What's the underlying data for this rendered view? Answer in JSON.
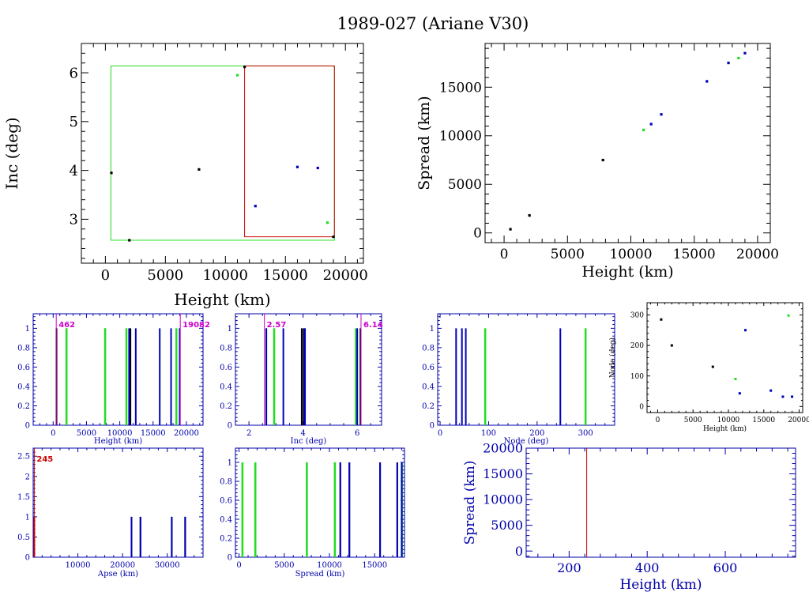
{
  "page": {
    "title": "1989-027 (Ariane V30)"
  },
  "colors": {
    "black": "#000000",
    "green": "#22dd22",
    "blue": "#0000bb",
    "red": "#cc0000",
    "magenta": "#cc00cc",
    "axisblue": "#0000aa"
  },
  "chart_data": [
    {
      "id": "inc-height",
      "type": "scatter",
      "xlabel": "Height (km)",
      "ylabel": "Inc (deg)",
      "xlim": [
        -2000,
        21500
      ],
      "ylim": [
        2.1,
        6.6
      ],
      "xticks": [
        0,
        5000,
        10000,
        15000,
        20000
      ],
      "yticks": [
        3,
        4,
        5,
        6
      ],
      "boxes": [
        {
          "color": "green",
          "x": [
            462,
            19082
          ],
          "y": [
            2.57,
            6.14
          ]
        },
        {
          "color": "red",
          "x": [
            11600,
            19082
          ],
          "y": [
            2.64,
            6.14
          ]
        }
      ],
      "series": [
        {
          "color": "black",
          "points": [
            [
              500,
              3.95
            ],
            [
              2000,
              2.57
            ],
            [
              7800,
              4.02
            ],
            [
              11600,
              6.12
            ],
            [
              19000,
              2.64
            ]
          ]
        },
        {
          "color": "green",
          "points": [
            [
              11000,
              5.95
            ],
            [
              18500,
              2.93
            ]
          ]
        },
        {
          "color": "blue",
          "points": [
            [
              12500,
              3.27
            ],
            [
              16000,
              4.07
            ],
            [
              17700,
              4.05
            ]
          ]
        }
      ]
    },
    {
      "id": "spread-height",
      "type": "scatter",
      "xlabel": "Height (km)",
      "ylabel": "Spread (km)",
      "xlim": [
        -1500,
        21000
      ],
      "ylim": [
        -1000,
        19500
      ],
      "xticks": [
        0,
        5000,
        10000,
        15000,
        20000
      ],
      "yticks": [
        0,
        5000,
        10000,
        15000
      ],
      "series": [
        {
          "color": "black",
          "points": [
            [
              500,
              380
            ],
            [
              2000,
              1800
            ],
            [
              7800,
              7500
            ]
          ]
        },
        {
          "color": "green",
          "points": [
            [
              11000,
              10600
            ],
            [
              18500,
              18000
            ]
          ]
        },
        {
          "color": "blue",
          "points": [
            [
              11600,
              11200
            ],
            [
              12400,
              12200
            ],
            [
              16000,
              15600
            ],
            [
              17700,
              17500
            ],
            [
              19000,
              18500
            ]
          ]
        }
      ]
    },
    {
      "id": "hist-height",
      "type": "bar",
      "xlabel": "Height (km)",
      "xlim": [
        -3000,
        22500
      ],
      "ylim": [
        0,
        1.15
      ],
      "xticks": [
        0,
        5000,
        10000,
        15000,
        20000
      ],
      "yticks": [
        0,
        0.2,
        0.4,
        0.6,
        0.8,
        1
      ],
      "series": [
        {
          "color": "black",
          "x": [
            500,
            2000,
            7800,
            11600,
            19000
          ]
        },
        {
          "color": "green",
          "x": [
            2000,
            7800,
            11000,
            18500
          ]
        },
        {
          "color": "blue",
          "x": [
            11400,
            12400,
            16000,
            17700,
            19000
          ]
        }
      ],
      "markers": [
        {
          "x": 462,
          "label": "462",
          "color": "magenta",
          "align": "right"
        },
        {
          "x": 19082,
          "label": "19082",
          "color": "magenta",
          "align": "right"
        }
      ]
    },
    {
      "id": "hist-inc",
      "type": "bar",
      "xlabel": "Inc (deg)",
      "xlim": [
        1.5,
        6.9
      ],
      "ylim": [
        0,
        1.15
      ],
      "xticks": [
        2,
        4,
        6
      ],
      "minor": 0.5,
      "yticks": [
        0,
        0.2,
        0.4,
        0.6,
        0.8,
        1
      ],
      "series": [
        {
          "color": "black",
          "x": [
            2.64,
            3.95,
            4.02,
            6.12
          ]
        },
        {
          "color": "green",
          "x": [
            2.93,
            5.95
          ]
        },
        {
          "color": "blue",
          "x": [
            2.64,
            3.27,
            4.05,
            4.07,
            6.0
          ]
        }
      ],
      "markers": [
        {
          "x": 2.57,
          "label": "2.57",
          "color": "magenta",
          "align": "right"
        },
        {
          "x": 6.14,
          "label": "6.14",
          "color": "magenta",
          "align": "right"
        }
      ]
    },
    {
      "id": "hist-node",
      "type": "bar",
      "xlabel": "Node (deg)",
      "xlim": [
        -5,
        360
      ],
      "ylim": [
        0,
        1.15
      ],
      "xticks": [
        0,
        100,
        200,
        300
      ],
      "minor": 20,
      "yticks": [
        0,
        0.2,
        0.4,
        0.6,
        0.8,
        1
      ],
      "series": [
        {
          "color": "green",
          "x": [
            93,
            300
          ]
        },
        {
          "color": "blue",
          "x": [
            33,
            45,
            53,
            248
          ]
        }
      ],
      "markers": []
    },
    {
      "id": "node-height",
      "type": "scatter",
      "xlabel": "Height (km)",
      "ylabel": "Node (deg)",
      "xlim": [
        -1500,
        20500
      ],
      "ylim": [
        -20,
        340
      ],
      "xticks": [
        0,
        5000,
        10000,
        15000,
        20000
      ],
      "yticks": [
        0,
        100,
        200,
        300
      ],
      "series": [
        {
          "color": "black",
          "points": [
            [
              500,
              285
            ],
            [
              2000,
              200
            ],
            [
              7800,
              130
            ]
          ]
        },
        {
          "color": "green",
          "points": [
            [
              11000,
              90
            ],
            [
              18500,
              298
            ]
          ]
        },
        {
          "color": "blue",
          "points": [
            [
              11600,
              43
            ],
            [
              12400,
              250
            ],
            [
              16000,
              52
            ],
            [
              17700,
              32
            ],
            [
              19000,
              32
            ]
          ]
        }
      ]
    },
    {
      "id": "hist-apse",
      "type": "bar",
      "xlabel": "Apse (km)",
      "xlim": [
        0,
        38000
      ],
      "ylim": [
        0,
        2.7
      ],
      "xticks": [
        10000,
        20000,
        30000
      ],
      "minor": 2000,
      "yticks": [
        0,
        0.5,
        1,
        1.5,
        2,
        2.5
      ],
      "series": [
        {
          "color": "black",
          "x": [
            22000,
            24000,
            31000,
            34000
          ]
        },
        {
          "color": "blue",
          "x": [
            22000,
            24000,
            31000,
            34000
          ]
        },
        {
          "color": "red",
          "x": [
            245
          ]
        }
      ],
      "markers": [
        {
          "x": 245,
          "label": "245",
          "color": "red",
          "align": "right"
        }
      ]
    },
    {
      "id": "hist-spread",
      "type": "bar",
      "xlabel": "Spread (km)",
      "xlim": [
        -400,
        18300
      ],
      "ylim": [
        0,
        1.15
      ],
      "xticks": [
        0,
        5000,
        10000,
        15000
      ],
      "yticks": [
        0,
        0.2,
        0.4,
        0.6,
        0.8,
        1
      ],
      "series": [
        {
          "color": "black",
          "x": [
            380,
            1800,
            7500,
            10600,
            11200,
            12200,
            15600,
            17500,
            18000
          ]
        },
        {
          "color": "green",
          "x": [
            380,
            1800,
            7500,
            10600,
            18000
          ]
        },
        {
          "color": "blue",
          "x": [
            11200,
            12200,
            15600,
            17500,
            18000
          ]
        }
      ],
      "markers": []
    },
    {
      "id": "spread-height-low",
      "type": "line",
      "xlabel": "Height (km)",
      "ylabel": "Spread (km)",
      "xlim": [
        90,
        780
      ],
      "ylim": [
        -1200,
        20000
      ],
      "xticks": [
        200,
        400,
        600
      ],
      "yticks": [
        0,
        5000,
        10000,
        15000,
        20000
      ],
      "series": [
        {
          "color": "red",
          "vline": 245
        }
      ]
    }
  ]
}
